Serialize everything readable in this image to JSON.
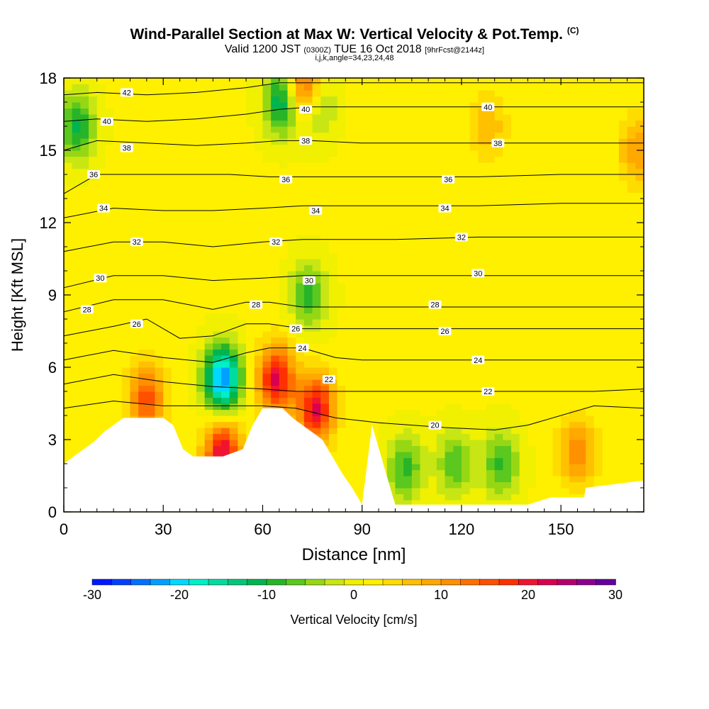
{
  "title": {
    "main": "Wind-Parallel Section at Max W: Vertical Velocity & Pot.Temp.",
    "main_mark": "(C)",
    "sub_a": "Valid 1200 JST",
    "sub_b": "(0300Z)",
    "sub_c": "TUE 16 Oct 2018",
    "sub_d": "[9hrFcst@2144z]",
    "sub2": "i,j,k,angle=34,23,24,48"
  },
  "chart_data": {
    "type": "heatmap",
    "xlabel": "Distance [nm]",
    "ylabel": "Height [Kft MSL]",
    "xlim": [
      0,
      175
    ],
    "ylim": [
      0,
      18
    ],
    "xticks": [
      0,
      30,
      60,
      90,
      120,
      150
    ],
    "yticks": [
      0,
      3,
      6,
      9,
      12,
      15,
      18
    ],
    "colorbar": {
      "label": "Vertical Velocity [cm/s]",
      "ticks": [
        -30,
        -20,
        -10,
        0,
        10,
        20,
        30
      ],
      "range": [
        -30,
        30
      ],
      "colors": [
        "#0018ff",
        "#0040ff",
        "#0070ff",
        "#00a0ff",
        "#00d8ff",
        "#00f0c8",
        "#00dca0",
        "#00c878",
        "#00b450",
        "#28b428",
        "#5ac81e",
        "#96d714",
        "#c8e614",
        "#f0f000",
        "#fff000",
        "#ffdc00",
        "#ffc000",
        "#ffa800",
        "#ff9000",
        "#ff7000",
        "#ff5000",
        "#ff3000",
        "#f01430",
        "#d80050",
        "#b4006e",
        "#8c0090",
        "#64009b"
      ]
    },
    "theta_isolines_label": "Pot.Temp.",
    "theta_levels": [
      20,
      22,
      24,
      26,
      28,
      30,
      32,
      34,
      36,
      38,
      40,
      42
    ],
    "vertical_velocity_features": [
      {
        "x": 25,
        "y": 4.7,
        "w": 14
      },
      {
        "x": 48,
        "y": 5.5,
        "w": -25
      },
      {
        "x": 48,
        "y": 2.5,
        "w": 20
      },
      {
        "x": 64,
        "y": 5.5,
        "w": 20
      },
      {
        "x": 76,
        "y": 4.3,
        "w": 20
      },
      {
        "x": 73,
        "y": 17.5,
        "w": 20
      },
      {
        "x": 66,
        "y": 17.0,
        "w": -15
      },
      {
        "x": 76,
        "y": 17.0,
        "w": -12
      },
      {
        "x": 74,
        "y": 9.0,
        "w": -10
      },
      {
        "x": 4,
        "y": 16.0,
        "w": -12
      },
      {
        "x": 103,
        "y": 1.8,
        "w": -10
      },
      {
        "x": 118,
        "y": 2.0,
        "w": -9
      },
      {
        "x": 132,
        "y": 2.0,
        "w": -10
      },
      {
        "x": 155,
        "y": 2.5,
        "w": 10
      },
      {
        "x": 173,
        "y": 15.0,
        "w": 8
      },
      {
        "x": 128,
        "y": 16.0,
        "w": 6
      }
    ],
    "terrain_profile": [
      {
        "x": 0,
        "h": 2.0
      },
      {
        "x": 3,
        "h": 2.3
      },
      {
        "x": 6,
        "h": 2.6
      },
      {
        "x": 9,
        "h": 2.9
      },
      {
        "x": 12,
        "h": 3.3
      },
      {
        "x": 15,
        "h": 3.6
      },
      {
        "x": 18,
        "h": 3.9
      },
      {
        "x": 30,
        "h": 3.9
      },
      {
        "x": 33,
        "h": 3.6
      },
      {
        "x": 36,
        "h": 2.6
      },
      {
        "x": 39,
        "h": 2.3
      },
      {
        "x": 48,
        "h": 2.3
      },
      {
        "x": 54,
        "h": 2.6
      },
      {
        "x": 57,
        "h": 3.6
      },
      {
        "x": 60,
        "h": 4.3
      },
      {
        "x": 66,
        "h": 4.3
      },
      {
        "x": 69,
        "h": 3.9
      },
      {
        "x": 72,
        "h": 3.6
      },
      {
        "x": 75,
        "h": 3.3
      },
      {
        "x": 78,
        "h": 3.0
      },
      {
        "x": 81,
        "h": 2.3
      },
      {
        "x": 84,
        "h": 1.6
      },
      {
        "x": 87,
        "h": 1.0
      },
      {
        "x": 90,
        "h": 0.3
      },
      {
        "x": 93,
        "h": 3.6
      },
      {
        "x": 100,
        "h": 0.3
      },
      {
        "x": 105,
        "h": 0.3
      },
      {
        "x": 110,
        "h": 0.3
      },
      {
        "x": 140,
        "h": 0.3
      },
      {
        "x": 147,
        "h": 0.6
      },
      {
        "x": 157,
        "h": 0.6
      },
      {
        "x": 157.5,
        "h": 1.0
      },
      {
        "x": 175,
        "h": 1.3
      }
    ],
    "theta_contours": [
      {
        "level": 20,
        "points": [
          [
            0,
            4.3
          ],
          [
            15,
            4.6
          ],
          [
            30,
            4.4
          ],
          [
            45,
            4.4
          ],
          [
            60,
            4.4
          ],
          [
            70,
            4.3
          ],
          [
            82,
            3.9
          ],
          [
            95,
            3.7
          ],
          [
            115,
            3.5
          ],
          [
            130,
            3.4
          ],
          [
            140,
            3.6
          ],
          [
            160,
            4.4
          ],
          [
            175,
            4.3
          ]
        ],
        "labels": [
          [
            112,
            3.6
          ]
        ]
      },
      {
        "level": 22,
        "points": [
          [
            0,
            5.3
          ],
          [
            15,
            5.7
          ],
          [
            30,
            5.4
          ],
          [
            45,
            5.2
          ],
          [
            60,
            5.1
          ],
          [
            70,
            5.0
          ],
          [
            82,
            5.0
          ],
          [
            90,
            5.0
          ],
          [
            100,
            5.0
          ],
          [
            110,
            5.0
          ],
          [
            125,
            5.0
          ],
          [
            140,
            5.0
          ],
          [
            160,
            5.0
          ],
          [
            175,
            5.1
          ]
        ],
        "labels": [
          [
            80,
            5.5
          ],
          [
            128,
            5.0
          ]
        ]
      },
      {
        "level": 24,
        "points": [
          [
            0,
            6.3
          ],
          [
            15,
            6.7
          ],
          [
            30,
            6.4
          ],
          [
            45,
            6.2
          ],
          [
            55,
            6.6
          ],
          [
            62,
            6.8
          ],
          [
            72,
            6.8
          ],
          [
            82,
            6.4
          ],
          [
            90,
            6.3
          ],
          [
            110,
            6.3
          ],
          [
            130,
            6.3
          ],
          [
            160,
            6.3
          ],
          [
            175,
            6.3
          ]
        ],
        "labels": [
          [
            72,
            6.8
          ],
          [
            125,
            6.3
          ]
        ]
      },
      {
        "level": 26,
        "points": [
          [
            0,
            7.3
          ],
          [
            15,
            7.7
          ],
          [
            25,
            8.0
          ],
          [
            35,
            7.2
          ],
          [
            45,
            7.3
          ],
          [
            55,
            7.8
          ],
          [
            62,
            7.8
          ],
          [
            72,
            7.6
          ],
          [
            82,
            7.6
          ],
          [
            95,
            7.6
          ],
          [
            120,
            7.6
          ],
          [
            150,
            7.6
          ],
          [
            175,
            7.6
          ]
        ],
        "labels": [
          [
            22,
            7.8
          ],
          [
            70,
            7.6
          ],
          [
            115,
            7.5
          ]
        ]
      },
      {
        "level": 28,
        "points": [
          [
            0,
            8.3
          ],
          [
            15,
            8.8
          ],
          [
            30,
            8.8
          ],
          [
            45,
            8.4
          ],
          [
            55,
            8.7
          ],
          [
            62,
            8.7
          ],
          [
            72,
            8.5
          ],
          [
            82,
            8.5
          ],
          [
            100,
            8.5
          ],
          [
            120,
            8.5
          ],
          [
            150,
            8.5
          ],
          [
            175,
            8.5
          ]
        ],
        "labels": [
          [
            7,
            8.4
          ],
          [
            58,
            8.6
          ],
          [
            112,
            8.6
          ]
        ]
      },
      {
        "level": 30,
        "points": [
          [
            0,
            9.3
          ],
          [
            15,
            9.8
          ],
          [
            30,
            9.8
          ],
          [
            45,
            9.6
          ],
          [
            60,
            9.7
          ],
          [
            72,
            9.8
          ],
          [
            82,
            9.8
          ],
          [
            100,
            9.8
          ],
          [
            125,
            9.8
          ],
          [
            150,
            9.8
          ],
          [
            175,
            9.8
          ]
        ],
        "labels": [
          [
            11,
            9.7
          ],
          [
            74,
            9.6
          ],
          [
            125,
            9.9
          ]
        ]
      },
      {
        "level": 32,
        "points": [
          [
            0,
            10.8
          ],
          [
            15,
            11.2
          ],
          [
            30,
            11.2
          ],
          [
            45,
            11.0
          ],
          [
            60,
            11.2
          ],
          [
            72,
            11.3
          ],
          [
            82,
            11.3
          ],
          [
            100,
            11.3
          ],
          [
            125,
            11.4
          ],
          [
            150,
            11.4
          ],
          [
            175,
            11.4
          ]
        ],
        "labels": [
          [
            22,
            11.2
          ],
          [
            64,
            11.2
          ],
          [
            120,
            11.4
          ]
        ]
      },
      {
        "level": 34,
        "points": [
          [
            0,
            12.2
          ],
          [
            15,
            12.6
          ],
          [
            30,
            12.5
          ],
          [
            45,
            12.5
          ],
          [
            60,
            12.6
          ],
          [
            72,
            12.7
          ],
          [
            82,
            12.7
          ],
          [
            100,
            12.7
          ],
          [
            125,
            12.7
          ],
          [
            150,
            12.8
          ],
          [
            175,
            12.8
          ]
        ],
        "labels": [
          [
            12,
            12.6
          ],
          [
            76,
            12.5
          ],
          [
            115,
            12.6
          ]
        ]
      },
      {
        "level": 36,
        "points": [
          [
            0,
            13.2
          ],
          [
            10,
            14.0
          ],
          [
            20,
            14.0
          ],
          [
            35,
            14.0
          ],
          [
            50,
            14.0
          ],
          [
            62,
            13.9
          ],
          [
            72,
            13.9
          ],
          [
            82,
            13.9
          ],
          [
            100,
            13.9
          ],
          [
            125,
            13.9
          ],
          [
            150,
            14.0
          ],
          [
            175,
            14.0
          ]
        ],
        "labels": [
          [
            9,
            14.0
          ],
          [
            67,
            13.8
          ],
          [
            116,
            13.8
          ]
        ]
      },
      {
        "level": 38,
        "points": [
          [
            0,
            15.0
          ],
          [
            10,
            15.4
          ],
          [
            25,
            15.3
          ],
          [
            40,
            15.2
          ],
          [
            55,
            15.3
          ],
          [
            65,
            15.4
          ],
          [
            75,
            15.4
          ],
          [
            90,
            15.3
          ],
          [
            110,
            15.3
          ],
          [
            130,
            15.3
          ],
          [
            150,
            15.3
          ],
          [
            175,
            15.3
          ]
        ],
        "labels": [
          [
            19,
            15.1
          ],
          [
            73,
            15.4
          ],
          [
            131,
            15.3
          ]
        ]
      },
      {
        "level": 40,
        "points": [
          [
            0,
            16.2
          ],
          [
            10,
            16.3
          ],
          [
            25,
            16.2
          ],
          [
            40,
            16.3
          ],
          [
            55,
            16.5
          ],
          [
            65,
            16.7
          ],
          [
            75,
            16.8
          ],
          [
            90,
            16.8
          ],
          [
            110,
            16.8
          ],
          [
            130,
            16.8
          ],
          [
            150,
            16.8
          ],
          [
            175,
            16.8
          ]
        ],
        "labels": [
          [
            13,
            16.2
          ],
          [
            73,
            16.7
          ],
          [
            128,
            16.8
          ]
        ]
      },
      {
        "level": 42,
        "points": [
          [
            0,
            17.3
          ],
          [
            10,
            17.4
          ],
          [
            25,
            17.3
          ],
          [
            40,
            17.4
          ],
          [
            55,
            17.6
          ],
          [
            65,
            17.8
          ],
          [
            80,
            17.8
          ],
          [
            100,
            17.8
          ],
          [
            130,
            17.8
          ],
          [
            175,
            17.8
          ]
        ],
        "labels": [
          [
            19,
            17.4
          ]
        ]
      }
    ]
  }
}
